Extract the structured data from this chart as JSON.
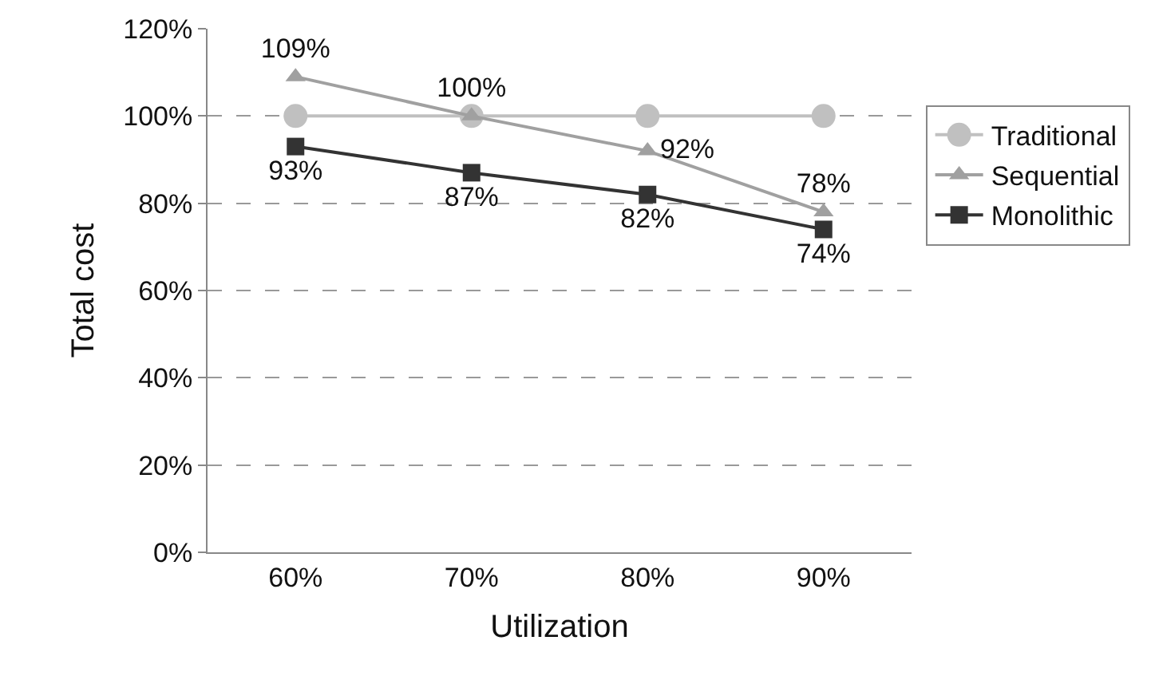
{
  "chart_data": {
    "type": "line",
    "xlabel": "Utilization",
    "ylabel": "Total cost",
    "categories": [
      "60%",
      "70%",
      "80%",
      "90%"
    ],
    "series": [
      {
        "name": "Traditional",
        "color": "#c0c0c0",
        "marker": "circle",
        "values": [
          100,
          100,
          100,
          100
        ]
      },
      {
        "name": "Sequential",
        "color": "#a0a0a0",
        "marker": "triangle",
        "values": [
          109,
          100,
          92,
          78
        ],
        "value_labels": [
          "109%",
          "100%",
          "92%",
          "78%"
        ]
      },
      {
        "name": "Monolithic",
        "color": "#333333",
        "marker": "square",
        "values": [
          93,
          87,
          82,
          74
        ],
        "value_labels": [
          "93%",
          "87%",
          "82%",
          "74%"
        ]
      }
    ],
    "ylim": [
      0,
      120
    ],
    "yticks": [
      {
        "value": 0,
        "label": "0%"
      },
      {
        "value": 20,
        "label": "20%"
      },
      {
        "value": 40,
        "label": "40%"
      },
      {
        "value": 60,
        "label": "60%"
      },
      {
        "value": 80,
        "label": "80%"
      },
      {
        "value": 100,
        "label": "100%"
      },
      {
        "value": 120,
        "label": "120%"
      }
    ],
    "grid": "y",
    "legend": "right",
    "line_style": "solid"
  }
}
